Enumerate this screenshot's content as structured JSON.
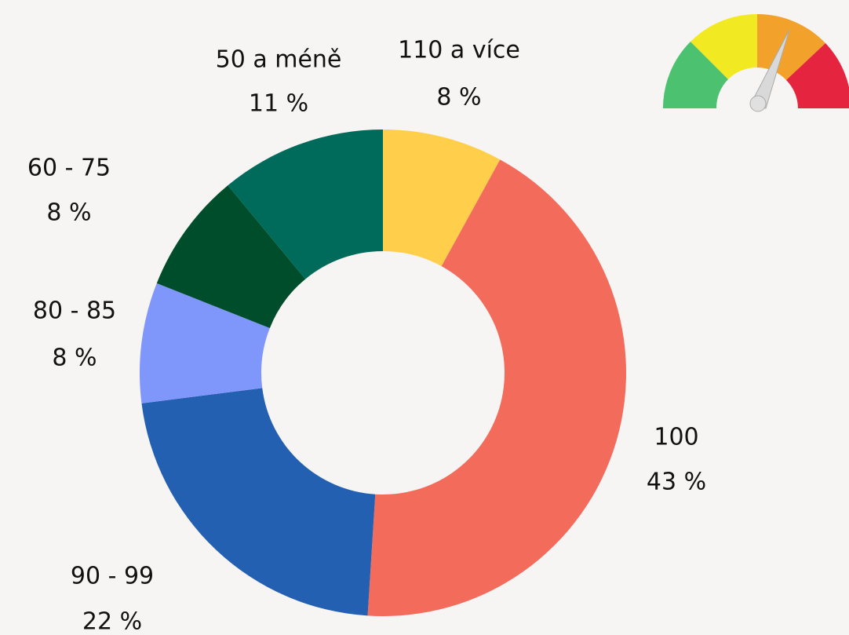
{
  "chart_data": {
    "type": "donut",
    "categories": [
      "110 a více",
      "100",
      "90 - 99",
      "80 - 85",
      "60 - 75",
      "50 a méně"
    ],
    "values": [
      8,
      43,
      22,
      8,
      8,
      11
    ],
    "value_labels": [
      "8 %",
      "43 %",
      "22 %",
      "8 %",
      "8 %",
      "11 %"
    ],
    "colors": [
      "#ffce4a",
      "#f26b5b",
      "#2460b2",
      "#7f97fa",
      "#004d2c",
      "#006b5b"
    ]
  }
}
